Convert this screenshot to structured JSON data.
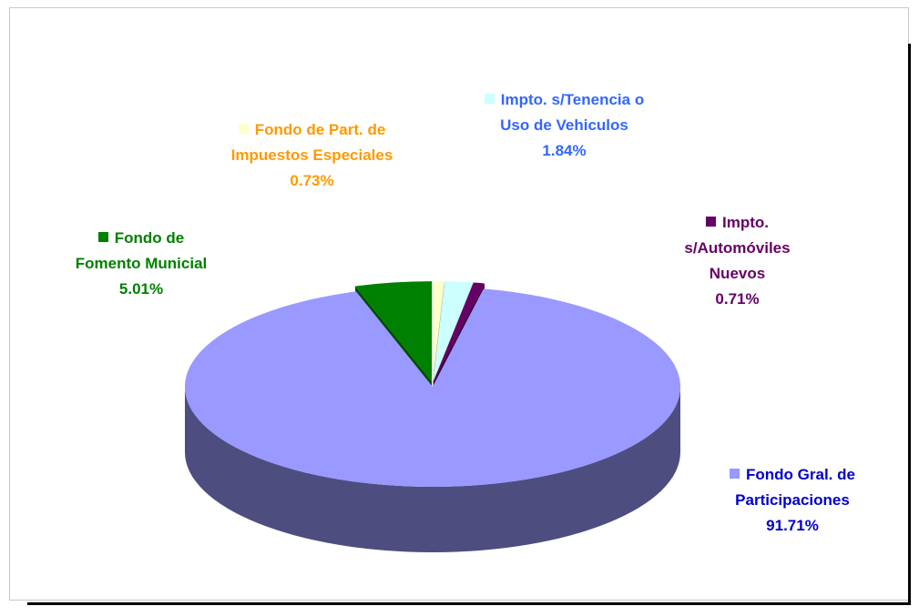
{
  "chart_data": {
    "type": "pie",
    "categories": [
      "Fondo de Fomento Municial",
      "Fondo de Part. de Impuestos Especiales",
      "Impto. s/Tenencia o Uso de Vehiculos",
      "Impto. s/Automóviles Nuevos",
      "Fondo Gral. de Participaciones"
    ],
    "values": [
      5.01,
      0.73,
      1.84,
      0.71,
      91.71
    ],
    "value_labels": [
      "5.01%",
      "0.73%",
      "1.84%",
      "0.71%",
      "91.71%"
    ],
    "colors": [
      "#008000",
      "#ffffcc",
      "#ccffff",
      "#660066",
      "#9999ff"
    ],
    "side_colors": [
      "#004d00",
      "#99997a",
      "#7a9999",
      "#3d003d",
      "#4d4d80"
    ],
    "label_colors": [
      "#008000",
      "#ff9900",
      "#3366ff",
      "#660066",
      "#0000cc"
    ]
  }
}
